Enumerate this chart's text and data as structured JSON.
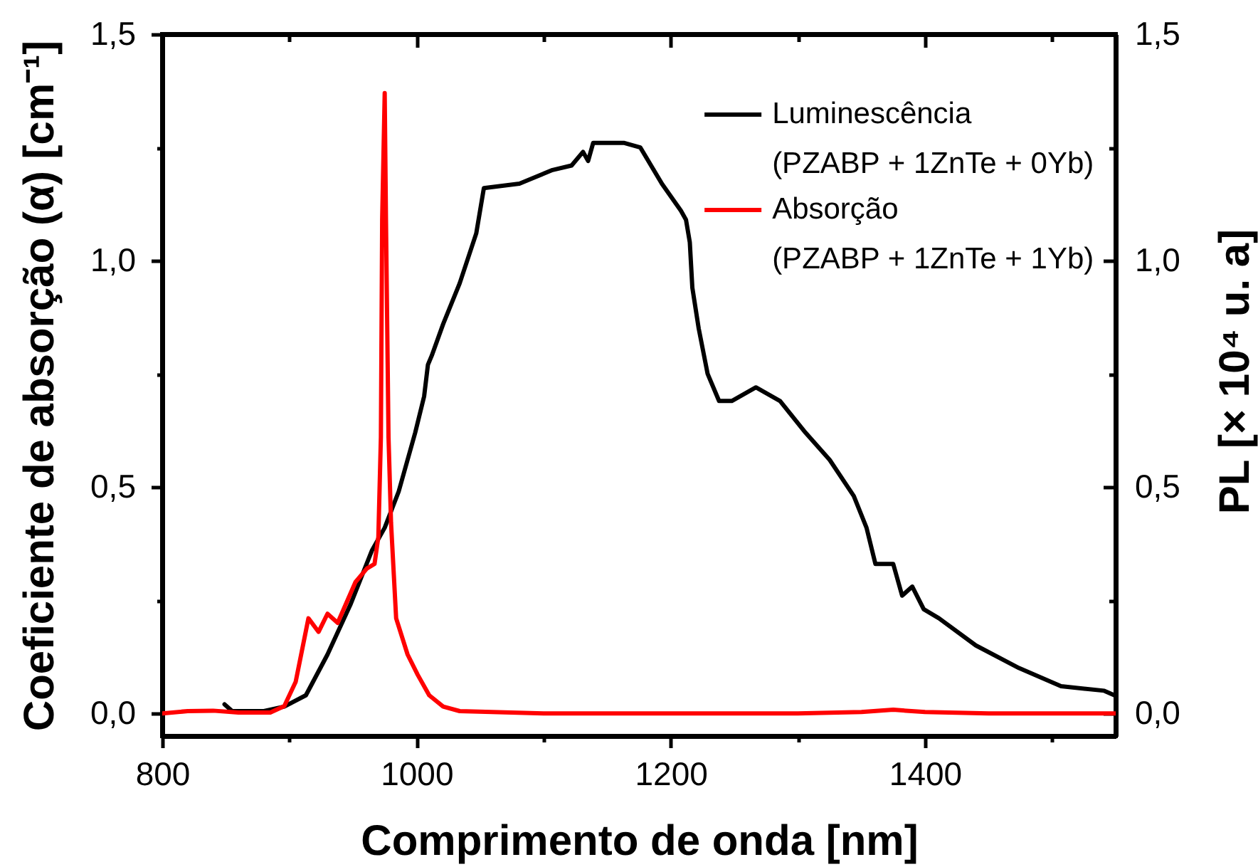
{
  "chart_data": {
    "type": "line",
    "xlabel": "Comprimento de onda [nm]",
    "ylabel": "Coeficiente de absorção (α) [cm⁻¹]",
    "y2label": "PL [× 10⁴ u. a]",
    "xlim": [
      800,
      1550
    ],
    "xticks": [
      800,
      {
        "value": 900,
        "label": null
      },
      1000,
      {
        "value": 1100,
        "label": null
      },
      1200,
      {
        "value": 1300,
        "label": null
      },
      1400,
      {
        "value": 1500,
        "label": null
      }
    ],
    "ylim": [
      -0.05,
      1.5
    ],
    "yticks": [
      {
        "value": 0,
        "label": "0,0"
      },
      {
        "value": 0.25,
        "label": null
      },
      {
        "value": 0.5,
        "label": "0,5"
      },
      {
        "value": 0.75,
        "label": null
      },
      {
        "value": 1,
        "label": "1,0"
      },
      {
        "value": 1.25,
        "label": null
      },
      {
        "value": 1.5,
        "label": "1,5"
      }
    ],
    "y2lim": [
      -0.05,
      1.5
    ],
    "y2ticks": [
      {
        "value": 0,
        "label": "0,0"
      },
      {
        "value": 0.25,
        "label": null
      },
      {
        "value": 0.5,
        "label": "0,5"
      },
      {
        "value": 0.75,
        "label": null
      },
      {
        "value": 1,
        "label": "1,0"
      },
      {
        "value": 1.25,
        "label": null
      },
      {
        "value": 1.5,
        "label": "1,5"
      }
    ],
    "legend": "top right",
    "series": [
      {
        "name": "Luminescência\n(PZABP + 1ZnTe + 0Yb)",
        "color": "#000000",
        "axis": "y2",
        "x": [
          849,
          855,
          880,
          896,
          913,
          930,
          948,
          965,
          975,
          986,
          999,
          1006,
          1009,
          1012,
          1021,
          1034,
          1047,
          1053,
          1081,
          1107,
          1122,
          1131,
          1135,
          1139,
          1163,
          1176,
          1193,
          1208,
          1212,
          1215,
          1217,
          1222,
          1229,
          1238,
          1248,
          1267,
          1286,
          1306,
          1325,
          1344,
          1354,
          1361,
          1368,
          1375,
          1382,
          1390,
          1399,
          1411,
          1440,
          1474,
          1507,
          1541,
          1549
        ],
        "values": [
          0.02,
          0.005,
          0.005,
          0.015,
          0.04,
          0.13,
          0.24,
          0.36,
          0.41,
          0.49,
          0.62,
          0.7,
          0.77,
          0.79,
          0.86,
          0.95,
          1.06,
          1.16,
          1.17,
          1.2,
          1.21,
          1.24,
          1.22,
          1.26,
          1.26,
          1.25,
          1.17,
          1.11,
          1.09,
          1.04,
          0.94,
          0.85,
          0.75,
          0.69,
          0.69,
          0.72,
          0.69,
          0.62,
          0.56,
          0.48,
          0.41,
          0.33,
          0.33,
          0.33,
          0.26,
          0.28,
          0.23,
          0.21,
          0.15,
          0.1,
          0.06,
          0.05,
          0.04
        ]
      },
      {
        "name": "Absorção\n(PZABP + 1ZnTe + 1Yb)",
        "color": "#ff0000",
        "x": [
          800,
          820,
          840,
          860,
          885,
          896,
          905,
          915,
          923,
          930,
          938,
          952,
          961,
          967,
          970,
          972,
          973,
          975,
          976,
          978,
          980,
          984,
          993,
          1001,
          1010,
          1021,
          1034,
          1100,
          1200,
          1300,
          1350,
          1375,
          1400,
          1450,
          1550
        ],
        "values": [
          0.0,
          0.005,
          0.006,
          0.002,
          0.002,
          0.016,
          0.07,
          0.21,
          0.18,
          0.22,
          0.2,
          0.29,
          0.32,
          0.33,
          0.39,
          0.61,
          1.09,
          1.37,
          1.09,
          0.61,
          0.42,
          0.21,
          0.13,
          0.085,
          0.04,
          0.015,
          0.005,
          0.0,
          0.0,
          0.0,
          0.003,
          0.008,
          0.003,
          0.0,
          0.0
        ]
      }
    ]
  }
}
